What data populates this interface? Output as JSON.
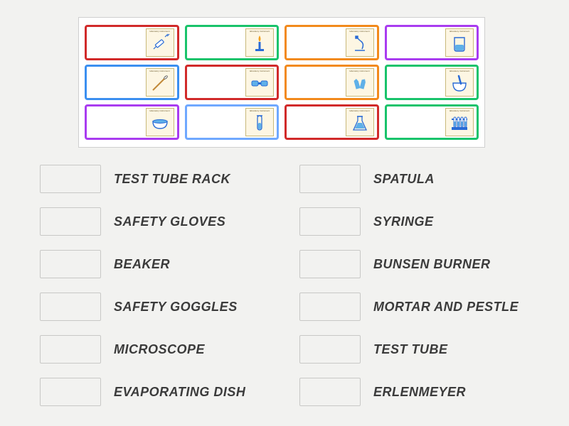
{
  "cards": [
    {
      "id": "syringe",
      "border": "#d12a2a",
      "icon": "syringe",
      "row": 1,
      "col": 1
    },
    {
      "id": "bunsen",
      "border": "#19c36b",
      "icon": "bunsen",
      "row": 1,
      "col": 2
    },
    {
      "id": "microscope",
      "border": "#f28a1c",
      "icon": "microscope",
      "row": 1,
      "col": 3
    },
    {
      "id": "beaker",
      "border": "#a93cf0",
      "icon": "beaker",
      "row": 1,
      "col": 4
    },
    {
      "id": "spatula",
      "border": "#3b8ff0",
      "icon": "spatula",
      "row": 2,
      "col": 1
    },
    {
      "id": "goggles",
      "border": "#d12a2a",
      "icon": "goggles",
      "row": 2,
      "col": 2
    },
    {
      "id": "gloves",
      "border": "#f28a1c",
      "icon": "gloves",
      "row": 2,
      "col": 3
    },
    {
      "id": "mortar",
      "border": "#19c36b",
      "icon": "mortar",
      "row": 2,
      "col": 4
    },
    {
      "id": "evapdish",
      "border": "#a93cf0",
      "icon": "evapdish",
      "row": 3,
      "col": 1
    },
    {
      "id": "testtube",
      "border": "#6fa8ff",
      "icon": "testtube",
      "row": 3,
      "col": 2
    },
    {
      "id": "erlenmeyer",
      "border": "#d12a2a",
      "icon": "erlenmeyer",
      "row": 3,
      "col": 3
    },
    {
      "id": "rack",
      "border": "#19c36b",
      "icon": "rack",
      "row": 3,
      "col": 4
    }
  ],
  "answers_left": [
    "TEST TUBE RACK",
    "SAFETY GLOVES",
    "BEAKER",
    "SAFETY GOGGLES",
    "MICROSCOPE",
    "EVAPORATING DISH"
  ],
  "answers_right": [
    "SPATULA",
    "SYRINGE",
    "BUNSEN BURNER",
    "MORTAR AND PESTLE",
    "TEST TUBE",
    "ERLENMEYER"
  ],
  "icon_colors": {
    "line_blue": "#2a6bd6",
    "fill_blue": "#5fb0e8",
    "line_dark": "#2a2a2a",
    "flame": "#f2a01c",
    "wood": "#c28a3a"
  },
  "background_color": "#f2f2f0",
  "board_border": "#cfcfcf",
  "inner_card_bg": "#fdf6e3",
  "inner_card_border": "#c9b97a",
  "label_color": "#3b3b3b",
  "label_fontsize": 18
}
